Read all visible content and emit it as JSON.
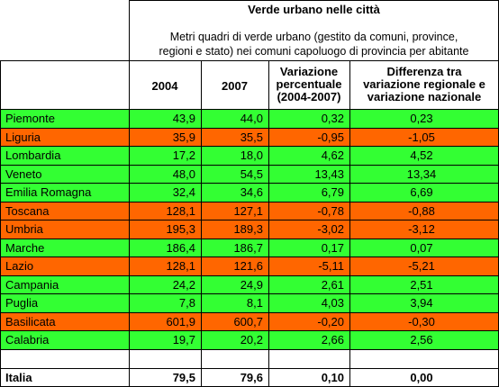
{
  "title": "Verde urbano nelle città",
  "subtitle_line1": "Metri quadri di verde urbano (gestito da comuni, province,",
  "subtitle_line2": "regioni e stato) nei comuni capoluogo di provincia per abitante",
  "headers": {
    "y2004": "2004",
    "y2007": "2007",
    "var_l1": "Variazione",
    "var_l2": "percentuale",
    "var_l3": "(2004-2007)",
    "diff_l1": "Differenza tra",
    "diff_l2": "variazione regionale e",
    "diff_l3": "variazione nazionale"
  },
  "colors": {
    "green": "#33ff33",
    "orange": "#ff6600"
  },
  "rows": [
    {
      "region": "Piemonte",
      "v2004": "43,9",
      "v2007": "44,0",
      "var": "0,32",
      "diff": "0,23",
      "color": "green"
    },
    {
      "region": "Liguria",
      "v2004": "35,9",
      "v2007": "35,5",
      "var": "-0,95",
      "diff": "-1,05",
      "color": "orange"
    },
    {
      "region": "Lombardia",
      "v2004": "17,2",
      "v2007": "18,0",
      "var": "4,62",
      "diff": "4,52",
      "color": "green"
    },
    {
      "region": "Veneto",
      "v2004": "48,0",
      "v2007": "54,5",
      "var": "13,43",
      "diff": "13,34",
      "color": "green"
    },
    {
      "region": "Emilia Romagna",
      "v2004": "32,4",
      "v2007": "34,6",
      "var": "6,79",
      "diff": "6,69",
      "color": "green"
    },
    {
      "region": "Toscana",
      "v2004": "128,1",
      "v2007": "127,1",
      "var": "-0,78",
      "diff": "-0,88",
      "color": "orange"
    },
    {
      "region": "Umbria",
      "v2004": "195,3",
      "v2007": "189,3",
      "var": "-3,02",
      "diff": "-3,12",
      "color": "orange"
    },
    {
      "region": "Marche",
      "v2004": "186,4",
      "v2007": "186,7",
      "var": "0,17",
      "diff": "0,07",
      "color": "green"
    },
    {
      "region": "Lazio",
      "v2004": "128,1",
      "v2007": "121,6",
      "var": "-5,11",
      "diff": "-5,21",
      "color": "orange"
    },
    {
      "region": "Campania",
      "v2004": "24,2",
      "v2007": "24,9",
      "var": "2,61",
      "diff": "2,51",
      "color": "green"
    },
    {
      "region": "Puglia",
      "v2004": "7,8",
      "v2007": "8,1",
      "var": "4,03",
      "diff": "3,94",
      "color": "green"
    },
    {
      "region": "Basilicata",
      "v2004": "601,9",
      "v2007": "600,7",
      "var": "-0,20",
      "diff": "-0,30",
      "color": "orange"
    },
    {
      "region": "Calabria",
      "v2004": "19,7",
      "v2007": "20,2",
      "var": "2,66",
      "diff": "2,56",
      "color": "green"
    }
  ],
  "total": {
    "region": "Italia",
    "v2004": "79,5",
    "v2007": "79,6",
    "var": "0,10",
    "diff": "0,00"
  }
}
